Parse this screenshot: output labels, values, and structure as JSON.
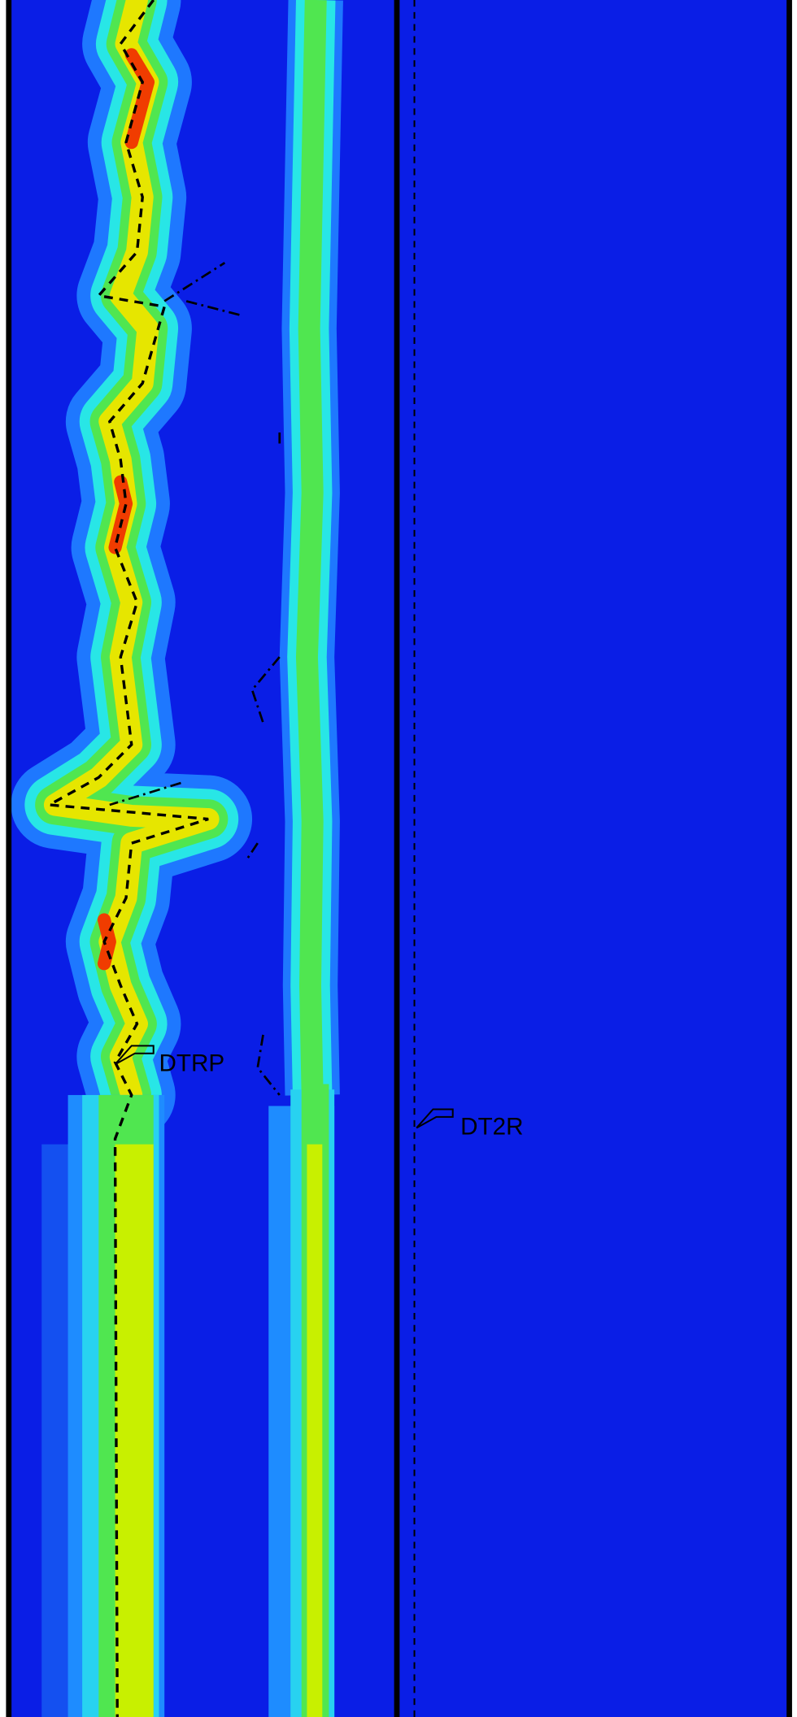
{
  "labels": {
    "left_curve": "DTRP",
    "right_curve": "DT2R"
  }
}
